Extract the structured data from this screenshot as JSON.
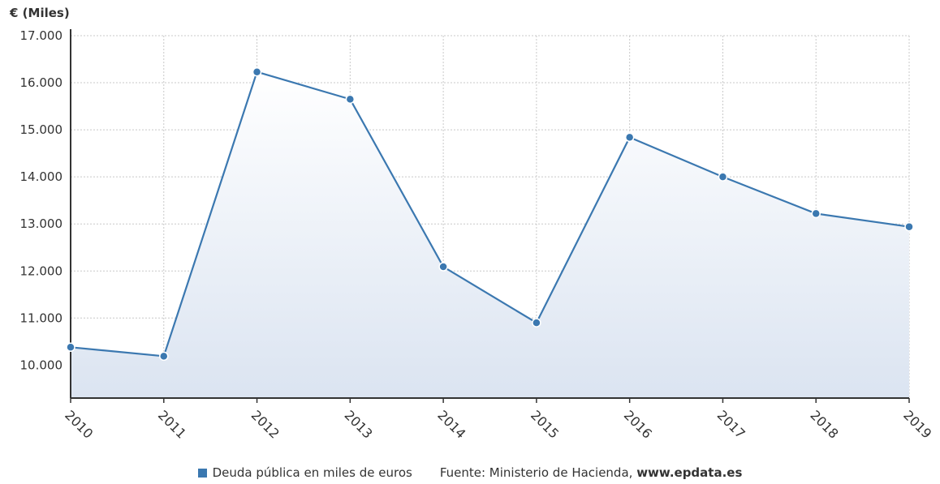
{
  "colors": {
    "series": "#3b78b0",
    "area": "#dbe4f1",
    "grid": "#c8c8c8",
    "axis": "#333333",
    "text": "#333333"
  },
  "chart_data": {
    "type": "area",
    "title": "",
    "ylabel": "€ (Miles)",
    "xlabel": "",
    "categories": [
      "2010",
      "2011",
      "2012",
      "2013",
      "2014",
      "2015",
      "2016",
      "2017",
      "2018",
      "2019"
    ],
    "series": [
      {
        "name": "Deuda pública en miles de euros",
        "values": [
          10380,
          10190,
          16230,
          15650,
          12090,
          10900,
          14840,
          14000,
          13220,
          12940
        ]
      }
    ],
    "ylim": [
      9300,
      17000
    ],
    "yticks": [
      10000,
      11000,
      12000,
      13000,
      14000,
      15000,
      16000,
      17000
    ],
    "ytick_labels": [
      "10.000",
      "11.000",
      "12.000",
      "13.000",
      "14.000",
      "15.000",
      "16.000",
      "17.000"
    ],
    "grid": true,
    "legend_position": "bottom"
  },
  "footer": {
    "legend_label": "Deuda pública en miles de euros",
    "source_prefix": "Fuente: Ministerio de Hacienda,",
    "source_site": "www.epdata.es"
  }
}
